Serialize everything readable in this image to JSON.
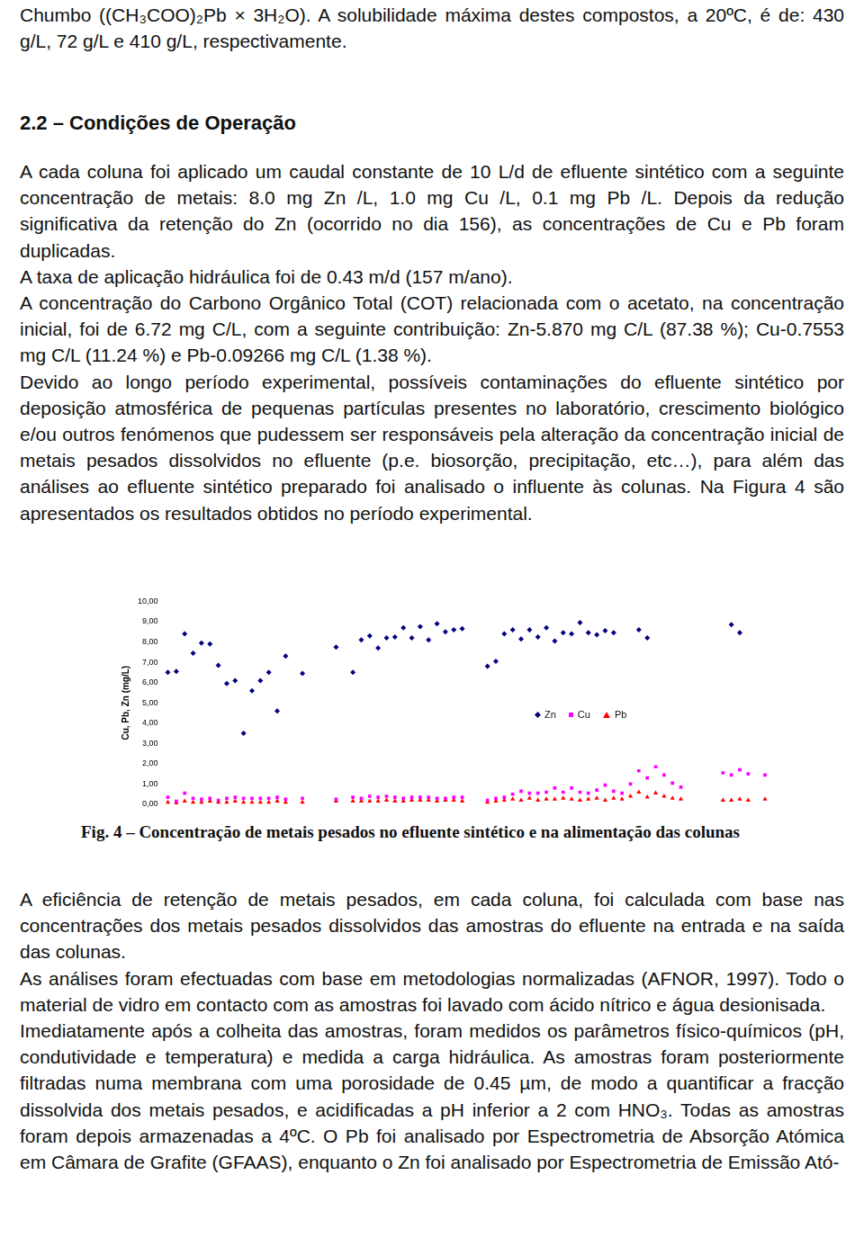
{
  "text_before": "Chumbo ((CH₃COO)₂Pb × 3H₂O). A solubilidade máxima destes compostos, a 20ºC, é de: 430 g/L, 72 g/L e 410 g/L, respectivamente.",
  "heading": "2.2 – Condições de Operação",
  "paragraphs_before": [
    "A cada coluna foi aplicado um caudal constante de 10 L/d de efluente sintético com a seguinte concentração de metais: 8.0 mg Zn /L, 1.0 mg Cu /L, 0.1 mg Pb /L. Depois da redução significativa da retenção do Zn (ocorrido no dia 156), as concentrações de Cu e Pb foram duplicadas.",
    "A taxa de aplicação hidráulica foi de 0.43 m/d (157 m/ano).",
    "A concentração do Carbono Orgânico Total (COT) relacionada com o acetato, na concentração inicial, foi de 6.72 mg C/L, com a seguinte contribuição: Zn-5.870 mg C/L (87.38 %); Cu-0.7553 mg C/L (11.24 %) e Pb-0.09266 mg C/L (1.38 %).",
    "Devido ao longo período experimental, possíveis contaminações do efluente sintético por deposição atmosférica de pequenas partículas presentes no laboratório, crescimento biológico e/ou outros fenómenos que pudessem ser responsáveis pela alteração da concentração inicial de metais pesados dissolvidos no efluente (p.e. biosorção, precipitação, etc…), para além das análises ao efluente sintético preparado foi analisado o influente às colunas. Na Figura 4 são apresentados os resultados obtidos no período experimental."
  ],
  "chart_data": {
    "type": "scatter",
    "y_label": "Cu, Pb, Zn (mg/L)",
    "categories": [
      null,
      null,
      null,
      null,
      null,
      null,
      null,
      null,
      null,
      null,
      null,
      null,
      null,
      null,
      null,
      null,
      null,
      null,
      null,
      null,
      null,
      null,
      null,
      null,
      null,
      null,
      null,
      null,
      null,
      null,
      null,
      null,
      null,
      null,
      null,
      null,
      null,
      null,
      null,
      null,
      null,
      null,
      null,
      null,
      null,
      null,
      null,
      null,
      null,
      null,
      null,
      null,
      null,
      null,
      null,
      null,
      null,
      null,
      null,
      null,
      null,
      null,
      null,
      null,
      null,
      null,
      null,
      null,
      null,
      null,
      null,
      null
    ],
    "series": [
      {
        "name": "Zn",
        "color": "#000080",
        "marker": "diamond",
        "line_style": "none",
        "values": [
          6.5,
          6.55,
          8.4,
          7.45,
          7.95,
          7.9,
          6.85,
          5.95,
          6.1,
          3.5,
          5.6,
          6.1,
          6.5,
          4.6,
          7.3,
          null,
          6.45,
          null,
          null,
          null,
          7.75,
          null,
          6.5,
          8.1,
          8.3,
          7.7,
          8.2,
          8.25,
          8.7,
          8.2,
          8.75,
          8.1,
          8.9,
          8.5,
          8.6,
          8.65,
          null,
          null,
          6.8,
          7.05,
          8.4,
          8.6,
          8.15,
          8.6,
          8.25,
          8.7,
          8.05,
          8.45,
          8.4,
          8.95,
          8.45,
          8.35,
          8.55,
          8.45,
          null,
          null,
          8.6,
          8.2,
          null,
          null,
          null,
          null,
          null,
          null,
          null,
          null,
          null,
          8.85,
          8.45,
          null,
          null,
          null
        ]
      },
      {
        "name": "Cu",
        "color": "#ff00ff",
        "marker": "square",
        "line_style": "none",
        "values": [
          0.35,
          0.15,
          0.55,
          0.3,
          0.25,
          0.3,
          0.2,
          0.3,
          0.35,
          0.3,
          0.3,
          0.3,
          0.3,
          0.35,
          0.25,
          null,
          0.3,
          null,
          null,
          null,
          0.25,
          null,
          0.35,
          0.3,
          0.4,
          0.35,
          0.4,
          0.35,
          0.3,
          0.35,
          0.35,
          0.35,
          0.3,
          0.3,
          0.35,
          0.35,
          null,
          null,
          0.2,
          0.3,
          0.35,
          0.5,
          0.65,
          0.55,
          0.55,
          0.6,
          0.8,
          0.6,
          0.8,
          0.6,
          0.55,
          0.7,
          0.95,
          0.65,
          0.55,
          1.0,
          1.65,
          1.3,
          1.85,
          1.45,
          1.05,
          0.85,
          null,
          null,
          null,
          null,
          1.55,
          1.45,
          1.7,
          1.5,
          null,
          1.45
        ]
      },
      {
        "name": "Pb",
        "color": "#ff0000",
        "marker": "triangle",
        "line_style": "none",
        "values": [
          0.1,
          0.05,
          0.15,
          0.1,
          0.1,
          0.15,
          0.1,
          0.1,
          0.15,
          0.1,
          0.1,
          0.1,
          0.1,
          0.15,
          0.1,
          null,
          0.1,
          null,
          null,
          null,
          0.15,
          null,
          0.15,
          0.15,
          0.15,
          0.15,
          0.2,
          0.15,
          0.15,
          0.2,
          0.2,
          0.2,
          0.15,
          0.2,
          0.2,
          0.15,
          null,
          null,
          0.1,
          0.15,
          0.2,
          0.25,
          0.2,
          0.3,
          0.2,
          0.25,
          0.25,
          0.3,
          0.25,
          0.2,
          0.25,
          0.3,
          0.2,
          0.3,
          0.25,
          0.4,
          0.6,
          0.35,
          0.55,
          0.4,
          0.3,
          0.25,
          null,
          null,
          null,
          null,
          0.2,
          0.2,
          0.25,
          0.2,
          null,
          0.25
        ]
      }
    ],
    "ylim": [
      0,
      10
    ],
    "yticks": [
      {
        "value": 0,
        "label": "0,00"
      },
      {
        "value": 1,
        "label": "1,00"
      },
      {
        "value": 2,
        "label": "2,00"
      },
      {
        "value": 3,
        "label": "3,00"
      },
      {
        "value": 4,
        "label": "4,00"
      },
      {
        "value": 5,
        "label": "5,00"
      },
      {
        "value": 6,
        "label": "6,00"
      },
      {
        "value": 7,
        "label": "7,00"
      },
      {
        "value": 8,
        "label": "8,00"
      },
      {
        "value": 9,
        "label": "9,00"
      },
      {
        "value": 10,
        "label": "10,00"
      }
    ],
    "grid": false,
    "legend": "right",
    "tick_labels": "y"
  },
  "caption": "Fig. 4 – Concentração de metais pesados no efluente sintético e na alimentação das colunas",
  "paragraphs_after": [
    "A eficiência de retenção de metais pesados, em cada coluna, foi calculada com base nas concentrações dos metais pesados dissolvidos das amostras do efluente na entrada e na saída das colunas.",
    "As análises foram efectuadas com base em metodologias normalizadas (AFNOR, 1997). Todo o material de vidro em contacto com as amostras foi lavado com ácido nítrico e água desionisada.",
    "Imediatamente após a colheita das amostras, foram medidos os parâmetros físico-químicos (pH, condutividade e temperatura) e medida a carga hidráulica. As amostras foram posteriormente filtradas numa membrana com uma porosidade de 0.45 µm, de modo a quantificar a fracção dissolvida dos metais pesados, e acidificadas a pH inferior a 2 com HNO₃. Todas as amostras foram depois armazenadas a 4ºC. O Pb foi analisado por Espectrometria de Absorção Atómica em Câmara de Grafite (GFAAS), enquanto o Zn foi analisado por Espectrometria de Emissão Ató-"
  ]
}
